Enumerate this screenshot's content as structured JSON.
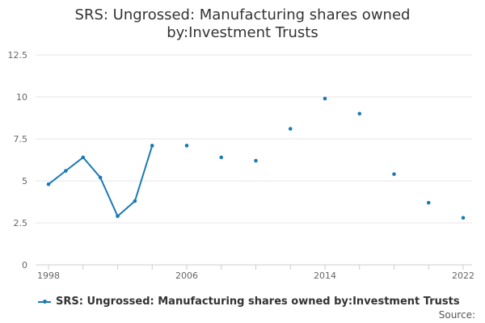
{
  "chart_data": {
    "type": "line",
    "title": "SRS: Ungrossed: Manufacturing shares owned by:Investment Trusts",
    "title_lines": [
      "SRS: Ungrossed: Manufacturing shares owned",
      "by:Investment Trusts"
    ],
    "xlabel": "",
    "ylabel": "",
    "xlim": [
      1998,
      2022
    ],
    "ylim": [
      0,
      12.5
    ],
    "x_ticks": [
      1998,
      2006,
      2014,
      2022
    ],
    "x_minor_ticks": [
      1998,
      2000,
      2002,
      2004,
      2006,
      2008,
      2010,
      2012,
      2014,
      2016,
      2018,
      2020,
      2022
    ],
    "y_ticks": [
      0,
      2.5,
      5,
      7.5,
      10,
      12.5
    ],
    "y_tick_labels": [
      "0",
      "2.5",
      "5",
      "7.5",
      "10",
      "12.5"
    ],
    "grid": true,
    "legend_position": "bottom-left",
    "series": [
      {
        "name": "SRS: Ungrossed: Manufacturing shares owned by:Investment Trusts",
        "color": "#1a7ab5",
        "x": [
          1998,
          1999,
          2000,
          2001,
          2002,
          2003,
          2004,
          2006,
          2008,
          2010,
          2012,
          2014,
          2016,
          2018,
          2020,
          2022
        ],
        "values": [
          4.8,
          5.6,
          6.4,
          5.2,
          2.9,
          3.8,
          7.1,
          7.1,
          6.4,
          6.2,
          8.1,
          9.9,
          9.0,
          5.4,
          3.7,
          2.8
        ],
        "connect_until_x": 2004
      }
    ]
  },
  "legend": {
    "label": "SRS: Ungrossed: Manufacturing shares owned by:Investment Trusts"
  },
  "source": {
    "label": "Source:"
  }
}
